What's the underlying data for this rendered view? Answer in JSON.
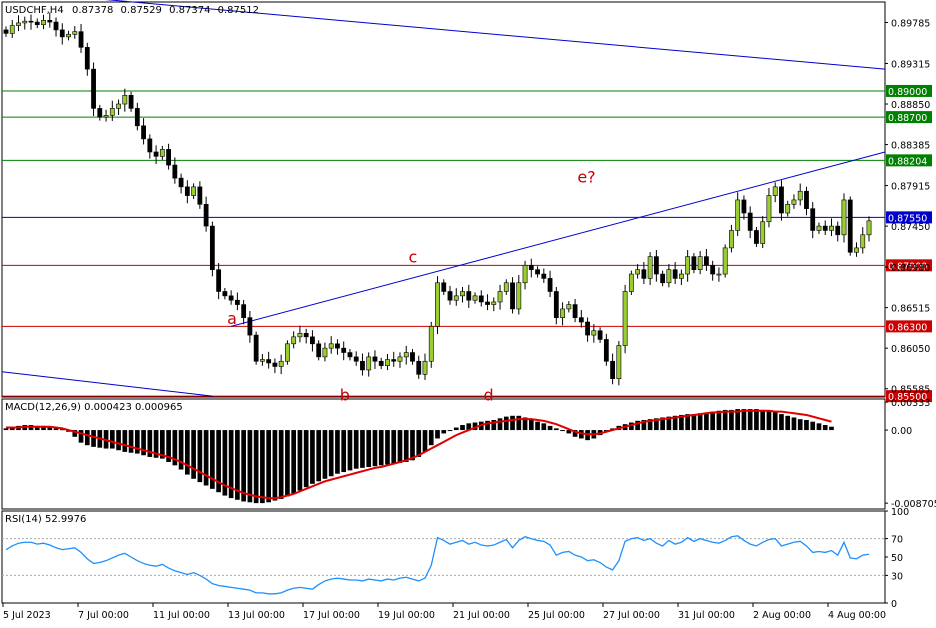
{
  "header": {
    "symbol": "USDCHF,H4",
    "open": "0.87378",
    "high": "0.87529",
    "low": "0.87374",
    "close": "0.87512"
  },
  "colors": {
    "bull": "#9ACD32",
    "bear": "#000000",
    "support": "#CC0000",
    "resistance": "#008000",
    "trendline": "#0000CC",
    "wave_label": "#CC0000",
    "macd_signal": "#E00000",
    "rsi_line": "#1E90FF"
  },
  "chart_data": [
    {
      "type": "candlestick",
      "title": "USDCHF,H4",
      "ylim": [
        0.8549,
        0.9002
      ],
      "y_ticks": [
        "0.89785",
        "0.89315",
        "0.88850",
        "0.88385",
        "0.87915",
        "0.87450",
        "0.86980",
        "0.86515",
        "0.86050",
        "0.85585"
      ],
      "price_levels": [
        {
          "label": "0.89000",
          "value": 0.89,
          "color": "green"
        },
        {
          "label": "0.88700",
          "value": 0.887,
          "color": "green"
        },
        {
          "label": "0.88204",
          "value": 0.88204,
          "color": "green"
        },
        {
          "label": "0.87550",
          "value": 0.8755,
          "color": "blue"
        },
        {
          "label": "0.87000",
          "value": 0.87,
          "color": "red"
        },
        {
          "label": "0.86300",
          "value": 0.863,
          "color": "red"
        },
        {
          "label": "0.85500",
          "value": 0.855,
          "color": "red"
        }
      ],
      "wave_labels": [
        "a",
        "b",
        "c",
        "d",
        "e?"
      ],
      "closes": [
        0.8966,
        0.8975,
        0.8978,
        0.898,
        0.8979,
        0.8976,
        0.8981,
        0.8979,
        0.897,
        0.8962,
        0.8965,
        0.8968,
        0.895,
        0.8925,
        0.888,
        0.887,
        0.8872,
        0.888,
        0.8885,
        0.8895,
        0.888,
        0.886,
        0.8845,
        0.883,
        0.8825,
        0.8833,
        0.8815,
        0.88,
        0.879,
        0.878,
        0.879,
        0.877,
        0.8745,
        0.8695,
        0.867,
        0.8665,
        0.866,
        0.8655,
        0.864,
        0.862,
        0.859,
        0.8592,
        0.8588,
        0.8584,
        0.859,
        0.861,
        0.8618,
        0.8622,
        0.8618,
        0.861,
        0.8595,
        0.8605,
        0.861,
        0.8605,
        0.86,
        0.8595,
        0.859,
        0.858,
        0.8595,
        0.859,
        0.8585,
        0.8592,
        0.859,
        0.8595,
        0.86,
        0.859,
        0.8575,
        0.859,
        0.863,
        0.868,
        0.867,
        0.866,
        0.8665,
        0.867,
        0.866,
        0.8665,
        0.8658,
        0.8655,
        0.8658,
        0.867,
        0.868,
        0.865,
        0.868,
        0.87,
        0.8695,
        0.869,
        0.8685,
        0.867,
        0.864,
        0.865,
        0.8655,
        0.864,
        0.8635,
        0.862,
        0.8625,
        0.8615,
        0.859,
        0.857,
        0.8608,
        0.867,
        0.869,
        0.8695,
        0.8685,
        0.871,
        0.869,
        0.868,
        0.8695,
        0.8685,
        0.869,
        0.871,
        0.8695,
        0.871,
        0.87,
        0.869,
        0.869,
        0.872,
        0.874,
        0.8775,
        0.876,
        0.874,
        0.8725,
        0.875,
        0.878,
        0.879,
        0.876,
        0.877,
        0.8775,
        0.8785,
        0.8765,
        0.874,
        0.8745,
        0.874,
        0.8745,
        0.8735,
        0.8775,
        0.8715,
        0.872,
        0.8735,
        0.8751
      ]
    },
    {
      "type": "bar",
      "title": "MACD(12,26,9) 0.000423 0.000965",
      "ylim": [
        -0.0094,
        0.0037
      ],
      "y_ticks": [
        "0.00333",
        "0.00",
        "-0.008705"
      ],
      "series": [
        {
          "name": "MACD",
          "values": [
            0.0002,
            0.0003,
            0.0005,
            0.0006,
            0.0006,
            0.0005,
            0.0005,
            0.0003,
            0.0002,
            0.0001,
            -0.0002,
            -0.0008,
            -0.0015,
            -0.0018,
            -0.002,
            -0.0021,
            -0.0022,
            -0.0022,
            -0.0024,
            -0.0026,
            -0.0027,
            -0.0028,
            -0.003,
            -0.0032,
            -0.0033,
            -0.0034,
            -0.0038,
            -0.0042,
            -0.0047,
            -0.0053,
            -0.0058,
            -0.0062,
            -0.0066,
            -0.007,
            -0.0074,
            -0.0078,
            -0.0081,
            -0.0083,
            -0.0085,
            -0.0086,
            -0.0087,
            -0.0087,
            -0.0086,
            -0.0084,
            -0.0082,
            -0.0079,
            -0.0076,
            -0.0072,
            -0.0068,
            -0.0064,
            -0.0061,
            -0.0058,
            -0.0055,
            -0.0052,
            -0.005,
            -0.0048,
            -0.0046,
            -0.0045,
            -0.0044,
            -0.0043,
            -0.0042,
            -0.0041,
            -0.004,
            -0.0039,
            -0.0038,
            -0.0036,
            -0.0032,
            -0.0026,
            -0.0018,
            -0.001,
            -0.0004,
            0.0,
            0.0003,
            0.0006,
            0.0008,
            0.0009,
            0.001,
            0.0011,
            0.0012,
            0.0014,
            0.0016,
            0.0017,
            0.0017,
            0.0015,
            0.0013,
            0.001,
            0.0008,
            0.0005,
            0.0002,
            -0.0001,
            -0.0004,
            -0.0008,
            -0.001,
            -0.0012,
            -0.001,
            -0.0006,
            -0.0002,
            0.0002,
            0.0005,
            0.0007,
            0.0009,
            0.0011,
            0.0012,
            0.0013,
            0.0014,
            0.0015,
            0.0016,
            0.0017,
            0.0018,
            0.0019,
            0.0019,
            0.002,
            0.0021,
            0.0022,
            0.0023,
            0.0024,
            0.0024,
            0.0025,
            0.0025,
            0.0025,
            0.0025,
            0.0024,
            0.0023,
            0.0021,
            0.0019,
            0.0017,
            0.0015,
            0.0013,
            0.0012,
            0.001,
            0.0008,
            0.0006,
            0.0004
          ]
        },
        {
          "name": "Signal",
          "values": [
            0.0003,
            0.0003,
            0.0003,
            0.0004,
            0.0004,
            0.0004,
            0.0004,
            0.0004,
            0.0003,
            0.0002,
            0.0,
            -0.0002,
            -0.0004,
            -0.0006,
            -0.0008,
            -0.001,
            -0.0012,
            -0.0014,
            -0.0016,
            -0.0018,
            -0.002,
            -0.0022,
            -0.0024,
            -0.0026,
            -0.0028,
            -0.003,
            -0.0032,
            -0.0035,
            -0.0038,
            -0.0042,
            -0.0046,
            -0.005,
            -0.0054,
            -0.0058,
            -0.0062,
            -0.0066,
            -0.0069,
            -0.0072,
            -0.0075,
            -0.0077,
            -0.0079,
            -0.008,
            -0.0081,
            -0.0081,
            -0.008,
            -0.0078,
            -0.0076,
            -0.0073,
            -0.007,
            -0.0067,
            -0.0064,
            -0.0061,
            -0.0059,
            -0.0057,
            -0.0055,
            -0.0053,
            -0.0051,
            -0.0049,
            -0.0047,
            -0.0045,
            -0.0044,
            -0.0042,
            -0.004,
            -0.0038,
            -0.0036,
            -0.0033,
            -0.003,
            -0.0026,
            -0.0022,
            -0.0018,
            -0.0014,
            -0.001,
            -0.0006,
            -0.0003,
            0.0,
            0.0003,
            0.0006,
            0.0008,
            0.0009,
            0.001,
            0.0011,
            0.0012,
            0.0013,
            0.0013,
            0.0013,
            0.0012,
            0.0011,
            0.0009,
            0.0007,
            0.0004,
            0.0001,
            -0.0002,
            -0.0004,
            -0.0005,
            -0.0005,
            -0.0004,
            -0.0002,
            0.0,
            0.0002,
            0.0004,
            0.0006,
            0.0008,
            0.001,
            0.0011,
            0.0012,
            0.0013,
            0.0014,
            0.0015,
            0.0016,
            0.0017,
            0.0018,
            0.0019,
            0.002,
            0.0021,
            0.0021,
            0.0022,
            0.0022,
            0.0022,
            0.0023,
            0.0023,
            0.0023,
            0.0023,
            0.0023,
            0.0022,
            0.0022,
            0.0021,
            0.002,
            0.0019,
            0.0018,
            0.0016,
            0.0014,
            0.0012,
            0.001
          ]
        }
      ]
    },
    {
      "type": "line",
      "title": "RSI(14) 52.9976",
      "ylim": [
        0,
        100
      ],
      "y_ticks": [
        "100",
        "70",
        "50",
        "30",
        "0"
      ],
      "levels": [
        70,
        30
      ],
      "values": [
        58,
        62,
        65,
        66,
        66,
        64,
        65,
        63,
        60,
        58,
        59,
        60,
        55,
        48,
        43,
        44,
        46,
        49,
        52,
        54,
        50,
        46,
        43,
        41,
        40,
        42,
        38,
        35,
        33,
        31,
        33,
        30,
        26,
        21,
        19,
        18,
        17,
        16,
        15,
        14,
        11,
        11,
        10,
        10,
        11,
        14,
        16,
        17,
        16,
        15,
        20,
        24,
        26,
        27,
        26,
        25,
        25,
        24,
        26,
        25,
        24,
        26,
        25,
        27,
        28,
        26,
        24,
        27,
        41,
        71,
        68,
        64,
        66,
        68,
        64,
        66,
        63,
        62,
        63,
        66,
        69,
        60,
        68,
        72,
        70,
        68,
        67,
        63,
        52,
        55,
        56,
        52,
        50,
        46,
        47,
        44,
        39,
        36,
        46,
        67,
        70,
        71,
        68,
        70,
        65,
        62,
        68,
        64,
        66,
        71,
        67,
        70,
        68,
        66,
        65,
        68,
        72,
        73,
        68,
        64,
        62,
        66,
        69,
        70,
        62,
        64,
        66,
        67,
        62,
        55,
        56,
        55,
        57,
        52,
        66,
        49,
        48,
        52,
        53
      ]
    }
  ],
  "x_axis": {
    "labels": [
      "5 Jul 2023",
      "7 Jul 00:00",
      "11 Jul 00:00",
      "13 Jul 00:00",
      "17 Jul 00:00",
      "19 Jul 00:00",
      "21 Jul 00:00",
      "25 Jul 00:00",
      "27 Jul 00:00",
      "31 Jul 00:00",
      "2 Aug 00:00",
      "4 Aug 00:00"
    ]
  }
}
